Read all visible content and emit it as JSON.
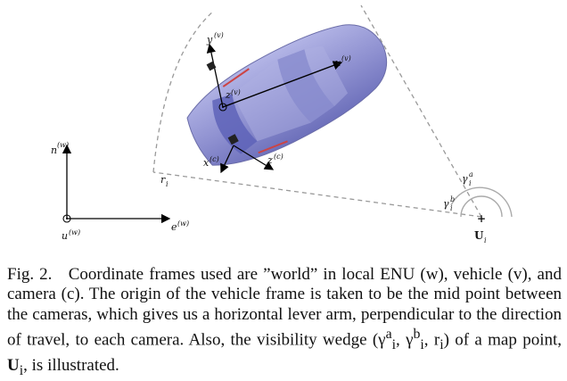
{
  "diagram": {
    "vehicle_axes": {
      "x": "x",
      "x_sup": "(v)",
      "y": "y",
      "y_sup": "(v)",
      "z": "z",
      "z_sup": "(v)"
    },
    "camera_axes": {
      "x": "x",
      "x_sup": "(c)",
      "z": "z",
      "z_sup": "(c)"
    },
    "world_axes": {
      "n": "n",
      "n_sup": "(w)",
      "e": "e",
      "e_sup": "(w)",
      "u": "u",
      "u_sup": "(w)"
    },
    "range_label": "r",
    "range_sub": "i",
    "gamma_a": {
      "base": "γ",
      "sup": "a",
      "sub": "i"
    },
    "gamma_b": {
      "base": "γ",
      "sup": "b",
      "sub": "i"
    },
    "map_point": {
      "label": "U",
      "sub": "i",
      "marker": "+"
    },
    "colors": {
      "car_body": "#8e90d0",
      "car_window": "#5e63b8",
      "car_outline": "#6a6ca8",
      "wedge": "#9a9a9a",
      "arc": "#aaaaaa"
    }
  },
  "caption": {
    "prefix": "Fig. 2.",
    "text": "Coordinate frames used are ”world” in local ENU (w), vehicle (v), and camera (c). The origin of the vehicle frame is taken to be the mid point between the cameras, which gives us a horizontal lever arm, perpendicular to the direction of travel, to each camera. Also, the visibility wedge (γ",
    "w1": "a",
    "w1s": "i",
    "mid1": ", γ",
    "w2": "b",
    "w2s": "i",
    "mid2": ", r",
    "w3s": "i",
    "tail": ") of a map point, ",
    "point": "U",
    "point_sub": "i",
    "end": ", is illustrated."
  }
}
